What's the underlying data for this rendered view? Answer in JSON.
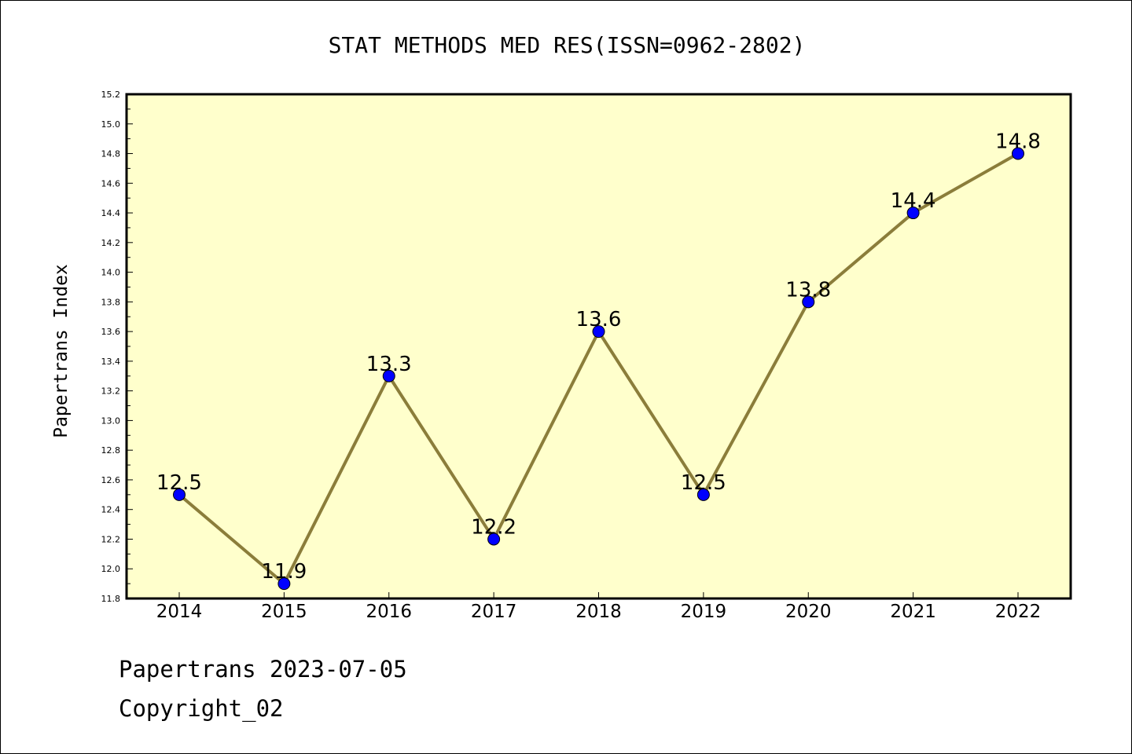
{
  "chart_data": {
    "type": "line",
    "title": "STAT METHODS MED RES(ISSN=0962-2802)",
    "xlabel": "",
    "ylabel": "Papertrans Index",
    "categories": [
      "2014",
      "2015",
      "2016",
      "2017",
      "2018",
      "2019",
      "2020",
      "2021",
      "2022"
    ],
    "series": [
      {
        "values": [
          12.5,
          11.9,
          13.3,
          12.2,
          13.6,
          12.5,
          13.8,
          14.4,
          14.8
        ],
        "data_labels": [
          "12.5",
          "11.9",
          "13.3",
          "12.2",
          "13.6",
          "12.5",
          "13.8",
          "14.4",
          "14.8"
        ]
      }
    ],
    "ylim": [
      11.8,
      15.2
    ],
    "yticks": [
      "11.8",
      "12.0",
      "12.2",
      "12.4",
      "12.6",
      "12.8",
      "13.0",
      "13.2",
      "13.4",
      "13.6",
      "13.8",
      "14.0",
      "14.2",
      "14.4",
      "14.6",
      "14.8",
      "15.0",
      "15.2"
    ],
    "grid": false,
    "colors": {
      "plot_background": "#ffffcc",
      "line": "#8b7d3a",
      "marker": "#0000ff",
      "marker_edge": "#000000"
    }
  },
  "footer": {
    "line1": "Papertrans 2023-07-05",
    "line2": "Copyright_02"
  }
}
